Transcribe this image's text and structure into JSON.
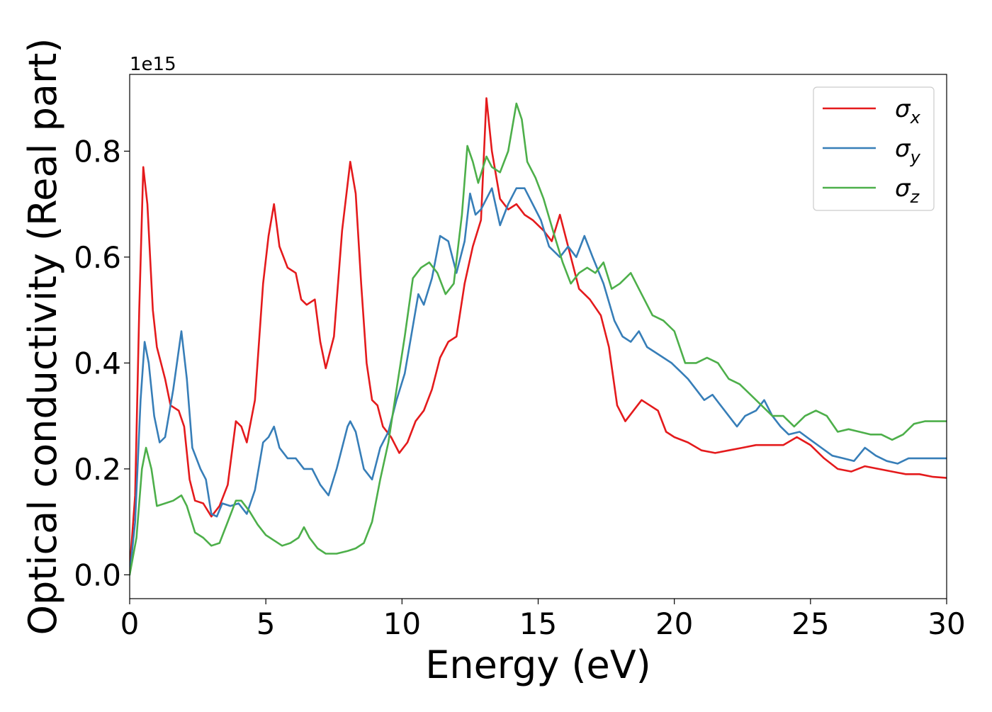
{
  "chart_data": {
    "type": "line",
    "xlabel": "Energy (eV)",
    "ylabel": "Optical conductivity (Real part)",
    "y_offset_label": "1e15",
    "xlim": [
      0,
      30
    ],
    "ylim": [
      -0.045,
      0.945
    ],
    "x_ticks": [
      0,
      5,
      10,
      15,
      20,
      25,
      30
    ],
    "x_tick_labels": [
      "0",
      "5",
      "10",
      "15",
      "20",
      "25",
      "30"
    ],
    "y_ticks": [
      0.0,
      0.2,
      0.4,
      0.6,
      0.8
    ],
    "y_tick_labels": [
      "0.0",
      "0.2",
      "0.4",
      "0.6",
      "0.8"
    ],
    "y_unit_multiplier": 1000000000000000.0,
    "grid": false,
    "legend_position": "top-right",
    "series": [
      {
        "name": "σx",
        "symbol": "σ",
        "subscript": "x",
        "color": "#e41a1c",
        "points": [
          [
            0,
            0.01
          ],
          [
            0.2,
            0.15
          ],
          [
            0.35,
            0.5
          ],
          [
            0.5,
            0.77
          ],
          [
            0.65,
            0.7
          ],
          [
            0.85,
            0.5
          ],
          [
            1.0,
            0.43
          ],
          [
            1.3,
            0.37
          ],
          [
            1.5,
            0.32
          ],
          [
            1.8,
            0.31
          ],
          [
            2.0,
            0.28
          ],
          [
            2.2,
            0.18
          ],
          [
            2.4,
            0.14
          ],
          [
            2.7,
            0.135
          ],
          [
            3.0,
            0.11
          ],
          [
            3.3,
            0.13
          ],
          [
            3.6,
            0.17
          ],
          [
            3.9,
            0.29
          ],
          [
            4.1,
            0.28
          ],
          [
            4.3,
            0.25
          ],
          [
            4.6,
            0.33
          ],
          [
            4.9,
            0.55
          ],
          [
            5.1,
            0.64
          ],
          [
            5.3,
            0.7
          ],
          [
            5.5,
            0.62
          ],
          [
            5.8,
            0.58
          ],
          [
            6.1,
            0.57
          ],
          [
            6.3,
            0.52
          ],
          [
            6.5,
            0.51
          ],
          [
            6.8,
            0.52
          ],
          [
            7.0,
            0.44
          ],
          [
            7.2,
            0.39
          ],
          [
            7.5,
            0.45
          ],
          [
            7.8,
            0.65
          ],
          [
            8.1,
            0.78
          ],
          [
            8.3,
            0.72
          ],
          [
            8.5,
            0.55
          ],
          [
            8.7,
            0.4
          ],
          [
            8.9,
            0.33
          ],
          [
            9.1,
            0.32
          ],
          [
            9.3,
            0.28
          ],
          [
            9.6,
            0.26
          ],
          [
            9.9,
            0.23
          ],
          [
            10.2,
            0.25
          ],
          [
            10.5,
            0.29
          ],
          [
            10.8,
            0.31
          ],
          [
            11.1,
            0.35
          ],
          [
            11.4,
            0.41
          ],
          [
            11.7,
            0.44
          ],
          [
            12.0,
            0.45
          ],
          [
            12.3,
            0.55
          ],
          [
            12.6,
            0.62
          ],
          [
            12.9,
            0.67
          ],
          [
            13.1,
            0.9
          ],
          [
            13.3,
            0.8
          ],
          [
            13.6,
            0.71
          ],
          [
            13.9,
            0.69
          ],
          [
            14.2,
            0.7
          ],
          [
            14.5,
            0.68
          ],
          [
            14.8,
            0.67
          ],
          [
            15.2,
            0.65
          ],
          [
            15.5,
            0.63
          ],
          [
            15.8,
            0.68
          ],
          [
            16.1,
            0.62
          ],
          [
            16.5,
            0.54
          ],
          [
            16.9,
            0.52
          ],
          [
            17.3,
            0.49
          ],
          [
            17.6,
            0.43
          ],
          [
            17.9,
            0.32
          ],
          [
            18.2,
            0.29
          ],
          [
            18.5,
            0.31
          ],
          [
            18.8,
            0.33
          ],
          [
            19.1,
            0.32
          ],
          [
            19.4,
            0.31
          ],
          [
            19.7,
            0.27
          ],
          [
            20.0,
            0.26
          ],
          [
            20.5,
            0.25
          ],
          [
            21.0,
            0.235
          ],
          [
            21.5,
            0.23
          ],
          [
            22.0,
            0.235
          ],
          [
            22.5,
            0.24
          ],
          [
            23.0,
            0.245
          ],
          [
            23.5,
            0.245
          ],
          [
            24.0,
            0.245
          ],
          [
            24.5,
            0.26
          ],
          [
            25.0,
            0.245
          ],
          [
            25.5,
            0.22
          ],
          [
            26.0,
            0.2
          ],
          [
            26.5,
            0.195
          ],
          [
            27.0,
            0.205
          ],
          [
            27.5,
            0.2
          ],
          [
            28.0,
            0.195
          ],
          [
            28.5,
            0.19
          ],
          [
            29.0,
            0.19
          ],
          [
            29.5,
            0.185
          ],
          [
            30.0,
            0.183
          ]
        ]
      },
      {
        "name": "σy",
        "symbol": "σ",
        "subscript": "y",
        "color": "#377eb8",
        "points": [
          [
            0,
            0.0
          ],
          [
            0.2,
            0.1
          ],
          [
            0.4,
            0.33
          ],
          [
            0.55,
            0.44
          ],
          [
            0.7,
            0.4
          ],
          [
            0.9,
            0.3
          ],
          [
            1.1,
            0.25
          ],
          [
            1.3,
            0.26
          ],
          [
            1.6,
            0.35
          ],
          [
            1.9,
            0.46
          ],
          [
            2.1,
            0.37
          ],
          [
            2.3,
            0.24
          ],
          [
            2.6,
            0.2
          ],
          [
            2.8,
            0.18
          ],
          [
            3.0,
            0.115
          ],
          [
            3.2,
            0.11
          ],
          [
            3.4,
            0.135
          ],
          [
            3.7,
            0.13
          ],
          [
            4.0,
            0.135
          ],
          [
            4.3,
            0.115
          ],
          [
            4.6,
            0.16
          ],
          [
            4.9,
            0.25
          ],
          [
            5.1,
            0.26
          ],
          [
            5.3,
            0.28
          ],
          [
            5.5,
            0.24
          ],
          [
            5.8,
            0.22
          ],
          [
            6.1,
            0.22
          ],
          [
            6.4,
            0.2
          ],
          [
            6.7,
            0.2
          ],
          [
            7.0,
            0.17
          ],
          [
            7.3,
            0.15
          ],
          [
            7.6,
            0.2
          ],
          [
            8.0,
            0.28
          ],
          [
            8.1,
            0.29
          ],
          [
            8.3,
            0.27
          ],
          [
            8.6,
            0.2
          ],
          [
            8.9,
            0.18
          ],
          [
            9.2,
            0.24
          ],
          [
            9.5,
            0.27
          ],
          [
            9.8,
            0.33
          ],
          [
            10.1,
            0.38
          ],
          [
            10.3,
            0.44
          ],
          [
            10.6,
            0.53
          ],
          [
            10.8,
            0.51
          ],
          [
            11.1,
            0.56
          ],
          [
            11.4,
            0.64
          ],
          [
            11.7,
            0.63
          ],
          [
            12.0,
            0.57
          ],
          [
            12.3,
            0.63
          ],
          [
            12.5,
            0.72
          ],
          [
            12.7,
            0.68
          ],
          [
            12.9,
            0.69
          ],
          [
            13.1,
            0.71
          ],
          [
            13.3,
            0.73
          ],
          [
            13.6,
            0.66
          ],
          [
            13.9,
            0.7
          ],
          [
            14.2,
            0.73
          ],
          [
            14.5,
            0.73
          ],
          [
            14.8,
            0.7
          ],
          [
            15.1,
            0.67
          ],
          [
            15.4,
            0.62
          ],
          [
            15.8,
            0.6
          ],
          [
            16.1,
            0.62
          ],
          [
            16.4,
            0.6
          ],
          [
            16.7,
            0.64
          ],
          [
            17.0,
            0.6
          ],
          [
            17.4,
            0.55
          ],
          [
            17.8,
            0.48
          ],
          [
            18.1,
            0.45
          ],
          [
            18.4,
            0.44
          ],
          [
            18.7,
            0.46
          ],
          [
            19.0,
            0.43
          ],
          [
            19.3,
            0.42
          ],
          [
            19.6,
            0.41
          ],
          [
            19.9,
            0.4
          ],
          [
            20.2,
            0.385
          ],
          [
            20.5,
            0.37
          ],
          [
            20.8,
            0.35
          ],
          [
            21.1,
            0.33
          ],
          [
            21.4,
            0.34
          ],
          [
            21.7,
            0.32
          ],
          [
            22.0,
            0.3
          ],
          [
            22.3,
            0.28
          ],
          [
            22.6,
            0.3
          ],
          [
            23.0,
            0.31
          ],
          [
            23.3,
            0.33
          ],
          [
            23.6,
            0.3
          ],
          [
            23.9,
            0.28
          ],
          [
            24.2,
            0.265
          ],
          [
            24.6,
            0.27
          ],
          [
            25.0,
            0.255
          ],
          [
            25.4,
            0.24
          ],
          [
            25.8,
            0.225
          ],
          [
            26.2,
            0.22
          ],
          [
            26.6,
            0.215
          ],
          [
            27.0,
            0.24
          ],
          [
            27.4,
            0.225
          ],
          [
            27.8,
            0.215
          ],
          [
            28.2,
            0.21
          ],
          [
            28.6,
            0.22
          ],
          [
            29.0,
            0.22
          ],
          [
            29.5,
            0.22
          ],
          [
            30.0,
            0.22
          ]
        ]
      },
      {
        "name": "σz",
        "symbol": "σ",
        "subscript": "z",
        "color": "#4daf4a",
        "points": [
          [
            0,
            0.0
          ],
          [
            0.25,
            0.07
          ],
          [
            0.45,
            0.2
          ],
          [
            0.6,
            0.24
          ],
          [
            0.8,
            0.2
          ],
          [
            1.0,
            0.13
          ],
          [
            1.3,
            0.135
          ],
          [
            1.6,
            0.14
          ],
          [
            1.9,
            0.15
          ],
          [
            2.1,
            0.13
          ],
          [
            2.4,
            0.08
          ],
          [
            2.7,
            0.07
          ],
          [
            3.0,
            0.055
          ],
          [
            3.3,
            0.06
          ],
          [
            3.6,
            0.1
          ],
          [
            3.9,
            0.14
          ],
          [
            4.1,
            0.14
          ],
          [
            4.4,
            0.12
          ],
          [
            4.7,
            0.095
          ],
          [
            5.0,
            0.075
          ],
          [
            5.3,
            0.065
          ],
          [
            5.6,
            0.055
          ],
          [
            5.9,
            0.06
          ],
          [
            6.2,
            0.07
          ],
          [
            6.4,
            0.09
          ],
          [
            6.6,
            0.07
          ],
          [
            6.9,
            0.05
          ],
          [
            7.2,
            0.04
          ],
          [
            7.6,
            0.04
          ],
          [
            8.0,
            0.045
          ],
          [
            8.3,
            0.05
          ],
          [
            8.6,
            0.06
          ],
          [
            8.9,
            0.1
          ],
          [
            9.2,
            0.18
          ],
          [
            9.5,
            0.25
          ],
          [
            9.8,
            0.35
          ],
          [
            10.1,
            0.45
          ],
          [
            10.4,
            0.56
          ],
          [
            10.7,
            0.58
          ],
          [
            11.0,
            0.59
          ],
          [
            11.3,
            0.57
          ],
          [
            11.6,
            0.53
          ],
          [
            11.9,
            0.55
          ],
          [
            12.2,
            0.68
          ],
          [
            12.4,
            0.81
          ],
          [
            12.6,
            0.78
          ],
          [
            12.8,
            0.74
          ],
          [
            13.1,
            0.79
          ],
          [
            13.3,
            0.77
          ],
          [
            13.6,
            0.76
          ],
          [
            13.9,
            0.8
          ],
          [
            14.2,
            0.89
          ],
          [
            14.4,
            0.86
          ],
          [
            14.6,
            0.78
          ],
          [
            14.9,
            0.75
          ],
          [
            15.2,
            0.71
          ],
          [
            15.6,
            0.64
          ],
          [
            15.9,
            0.59
          ],
          [
            16.2,
            0.55
          ],
          [
            16.5,
            0.57
          ],
          [
            16.8,
            0.58
          ],
          [
            17.1,
            0.57
          ],
          [
            17.4,
            0.59
          ],
          [
            17.7,
            0.54
          ],
          [
            18.0,
            0.55
          ],
          [
            18.4,
            0.57
          ],
          [
            18.8,
            0.53
          ],
          [
            19.2,
            0.49
          ],
          [
            19.6,
            0.48
          ],
          [
            20.0,
            0.46
          ],
          [
            20.4,
            0.4
          ],
          [
            20.8,
            0.4
          ],
          [
            21.2,
            0.41
          ],
          [
            21.6,
            0.4
          ],
          [
            22.0,
            0.37
          ],
          [
            22.4,
            0.36
          ],
          [
            22.8,
            0.34
          ],
          [
            23.2,
            0.32
          ],
          [
            23.6,
            0.3
          ],
          [
            24.0,
            0.3
          ],
          [
            24.4,
            0.28
          ],
          [
            24.8,
            0.3
          ],
          [
            25.2,
            0.31
          ],
          [
            25.6,
            0.3
          ],
          [
            26.0,
            0.27
          ],
          [
            26.4,
            0.275
          ],
          [
            26.8,
            0.27
          ],
          [
            27.2,
            0.265
          ],
          [
            27.6,
            0.265
          ],
          [
            28.0,
            0.255
          ],
          [
            28.4,
            0.265
          ],
          [
            28.8,
            0.285
          ],
          [
            29.2,
            0.29
          ],
          [
            29.6,
            0.29
          ],
          [
            30.0,
            0.29
          ]
        ]
      }
    ]
  }
}
